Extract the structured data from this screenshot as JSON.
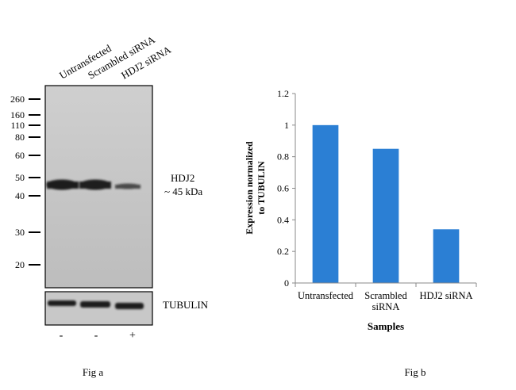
{
  "fig_a": {
    "caption": "Fig a",
    "lane_labels": [
      "Untransfected",
      "Scrambled siRNA",
      "HDJ2 siRNA"
    ],
    "mw_markers": [
      "260",
      "160",
      "110",
      "80",
      "60",
      "50",
      "40",
      "30",
      "20"
    ],
    "mw_values": [
      260,
      160,
      110,
      80,
      60,
      50,
      40,
      30,
      20
    ],
    "band_label": "HDJ2",
    "band_size": "~ 45 kDa",
    "loading_control_label": "TUBULIN",
    "treatment_marks": [
      "-",
      "-",
      "+"
    ],
    "band_intensity": [
      1.0,
      0.9,
      0.4
    ],
    "blot_bg_color": "#c4c4c4",
    "band_color": "#1a1a1a"
  },
  "fig_b": {
    "caption": "Fig b",
    "bar_color": "#2b7fd4"
  },
  "chart_data": {
    "type": "bar",
    "categories": [
      "Untransfected",
      "Scrambled siRNA",
      "HDJ2 siRNA"
    ],
    "category_lines": [
      [
        "Untransfected"
      ],
      [
        "Scrambled",
        "siRNA"
      ],
      [
        "HDJ2 siRNA"
      ]
    ],
    "values": [
      1.0,
      0.85,
      0.34
    ],
    "xlabel": "Samples",
    "ylabel_lines": [
      "Expression normalized",
      "to TUBULIN"
    ],
    "ylim": [
      0,
      1.2
    ],
    "yticks": [
      "0",
      "0.2",
      "0.4",
      "0.6",
      "0.8",
      "1",
      "1.2"
    ],
    "ytick_values": [
      0,
      0.2,
      0.4,
      0.6,
      0.8,
      1.0,
      1.2
    ],
    "grid": false,
    "legend": "none"
  }
}
